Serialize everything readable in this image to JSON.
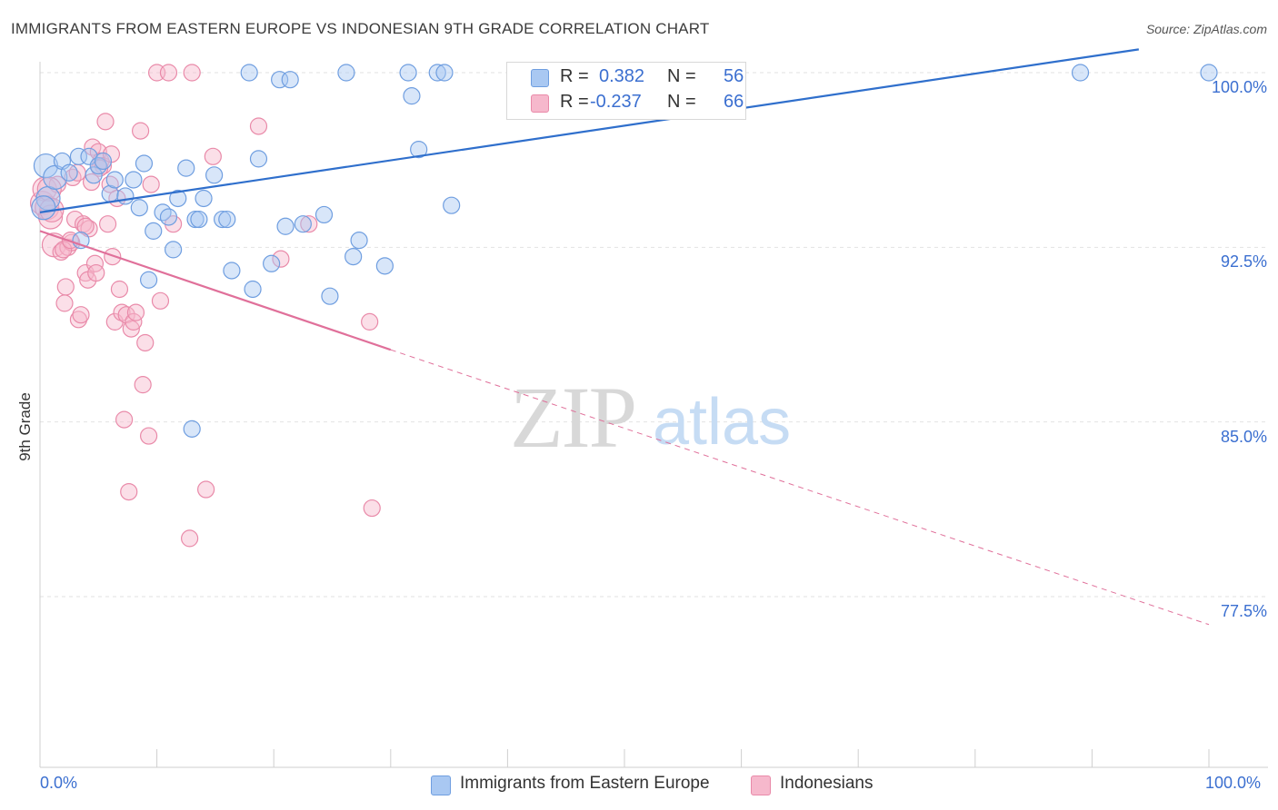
{
  "header": {
    "title": "IMMIGRANTS FROM EASTERN EUROPE VS INDONESIAN 9TH GRADE CORRELATION CHART",
    "source": "Source: ZipAtlas.com"
  },
  "watermark": {
    "zip": "ZIP",
    "atlas": "atlas"
  },
  "legend": {
    "r_label": "R =",
    "n_label": "N =",
    "series_a": {
      "r": "0.382",
      "n": "56"
    },
    "series_b": {
      "r": "-0.237",
      "n": "66"
    }
  },
  "bottom_legend": {
    "series_a": "Immigrants from Eastern Europe",
    "series_b": "Indonesians"
  },
  "colors": {
    "series_a_fill": "#a9c8f2",
    "series_a_stroke": "#6f9ee0",
    "series_a_line": "#2f6fcc",
    "series_b_fill": "#f6b8cc",
    "series_b_stroke": "#e98aa9",
    "series_b_line": "#e0709a",
    "tick_label": "#3b6fd0",
    "grid": "#e2e2e2"
  },
  "chart_data": {
    "type": "scatter",
    "title": "IMMIGRANTS FROM EASTERN EUROPE VS INDONESIAN 9TH GRADE CORRELATION CHART",
    "xlabel": "",
    "ylabel": "9th Grade",
    "xlim": [
      0,
      100
    ],
    "ylim": [
      70.5,
      101.5
    ],
    "x_tick_labels": [
      "0.0%",
      "100.0%"
    ],
    "y_ticks": [
      100.0,
      92.5,
      85.0,
      77.5
    ],
    "y_tick_labels": [
      "100.0%",
      "92.5%",
      "85.0%",
      "77.5%"
    ],
    "grid": true,
    "legend_position": "top-center",
    "series": [
      {
        "name": "Immigrants from Eastern Europe",
        "r": 0.382,
        "n": 56,
        "trend": {
          "x0": 0,
          "y0": 94.0,
          "x1": 94,
          "y1": 101.0,
          "dashed_to": null
        },
        "points": [
          [
            0.5,
            96.0
          ],
          [
            0.7,
            94.6
          ],
          [
            1.3,
            95.5
          ],
          [
            1.9,
            96.2
          ],
          [
            2.5,
            95.7
          ],
          [
            3.3,
            96.4
          ],
          [
            3.5,
            92.8
          ],
          [
            4.2,
            96.4
          ],
          [
            4.6,
            95.6
          ],
          [
            5.0,
            96.0
          ],
          [
            5.4,
            96.2
          ],
          [
            6.0,
            94.8
          ],
          [
            6.4,
            95.4
          ],
          [
            7.3,
            94.7
          ],
          [
            8.0,
            95.4
          ],
          [
            8.5,
            94.2
          ],
          [
            8.9,
            96.1
          ],
          [
            9.3,
            91.1
          ],
          [
            9.7,
            93.2
          ],
          [
            10.5,
            94.0
          ],
          [
            11.0,
            93.8
          ],
          [
            11.4,
            92.4
          ],
          [
            11.8,
            94.6
          ],
          [
            12.5,
            95.9
          ],
          [
            13.0,
            84.7
          ],
          [
            13.3,
            93.7
          ],
          [
            13.6,
            93.7
          ],
          [
            14.0,
            94.6
          ],
          [
            14.9,
            95.6
          ],
          [
            15.6,
            93.7
          ],
          [
            16.0,
            93.7
          ],
          [
            16.4,
            91.5
          ],
          [
            17.9,
            100.0
          ],
          [
            18.2,
            90.7
          ],
          [
            18.7,
            96.3
          ],
          [
            19.8,
            91.8
          ],
          [
            20.5,
            99.7
          ],
          [
            21.0,
            93.4
          ],
          [
            21.4,
            99.7
          ],
          [
            22.5,
            93.5
          ],
          [
            24.3,
            93.9
          ],
          [
            24.8,
            90.4
          ],
          [
            26.2,
            100.0
          ],
          [
            26.8,
            92.1
          ],
          [
            27.3,
            92.8
          ],
          [
            29.5,
            91.7
          ],
          [
            31.5,
            100.0
          ],
          [
            31.8,
            99.0
          ],
          [
            32.4,
            96.7
          ],
          [
            34.0,
            100.0
          ],
          [
            34.6,
            100.0
          ],
          [
            35.2,
            94.3
          ],
          [
            49.6,
            100.0
          ],
          [
            89.0,
            100.0
          ],
          [
            100.0,
            100.0
          ],
          [
            0.3,
            94.2
          ]
        ]
      },
      {
        "name": "Indonesians",
        "r": -0.237,
        "n": 66,
        "trend": {
          "x0": 0,
          "y0": 93.2,
          "x1": 30,
          "y1": 88.1,
          "dashed_to": [
            100,
            76.3
          ]
        },
        "points": [
          [
            0.2,
            94.4
          ],
          [
            0.4,
            95.0
          ],
          [
            0.6,
            94.2
          ],
          [
            0.9,
            93.8
          ],
          [
            1.2,
            92.6
          ],
          [
            1.5,
            95.2
          ],
          [
            1.8,
            92.3
          ],
          [
            2.1,
            90.1
          ],
          [
            2.2,
            90.8
          ],
          [
            2.4,
            92.5
          ],
          [
            2.7,
            92.7
          ],
          [
            2.8,
            95.5
          ],
          [
            3.0,
            93.7
          ],
          [
            3.2,
            95.7
          ],
          [
            3.3,
            89.4
          ],
          [
            3.5,
            89.6
          ],
          [
            3.7,
            93.5
          ],
          [
            3.9,
            91.4
          ],
          [
            4.1,
            91.1
          ],
          [
            4.2,
            93.3
          ],
          [
            4.5,
            96.8
          ],
          [
            4.7,
            91.8
          ],
          [
            4.8,
            91.4
          ],
          [
            5.0,
            96.6
          ],
          [
            5.2,
            96.2
          ],
          [
            5.4,
            96.0
          ],
          [
            5.6,
            97.9
          ],
          [
            5.8,
            93.5
          ],
          [
            6.0,
            95.2
          ],
          [
            6.2,
            92.1
          ],
          [
            6.4,
            89.3
          ],
          [
            6.6,
            94.6
          ],
          [
            6.8,
            90.7
          ],
          [
            7.0,
            89.7
          ],
          [
            7.2,
            85.1
          ],
          [
            7.4,
            89.6
          ],
          [
            7.6,
            82.0
          ],
          [
            7.8,
            89.0
          ],
          [
            8.0,
            89.3
          ],
          [
            8.2,
            89.7
          ],
          [
            8.6,
            97.5
          ],
          [
            8.8,
            86.6
          ],
          [
            9.0,
            88.4
          ],
          [
            9.3,
            84.4
          ],
          [
            9.5,
            95.2
          ],
          [
            10.0,
            100.0
          ],
          [
            10.3,
            90.2
          ],
          [
            11.0,
            100.0
          ],
          [
            11.4,
            93.5
          ],
          [
            12.8,
            80.0
          ],
          [
            13.0,
            100.0
          ],
          [
            14.2,
            82.1
          ],
          [
            14.8,
            96.4
          ],
          [
            18.7,
            97.7
          ],
          [
            20.6,
            92.0
          ],
          [
            23.0,
            93.5
          ],
          [
            28.2,
            89.3
          ],
          [
            28.4,
            81.3
          ],
          [
            0.8,
            95.0
          ],
          [
            1.0,
            94.1
          ],
          [
            2.0,
            92.4
          ],
          [
            2.6,
            92.8
          ],
          [
            3.9,
            93.4
          ],
          [
            4.4,
            95.3
          ],
          [
            5.1,
            95.9
          ],
          [
            6.1,
            96.5
          ]
        ]
      }
    ]
  }
}
